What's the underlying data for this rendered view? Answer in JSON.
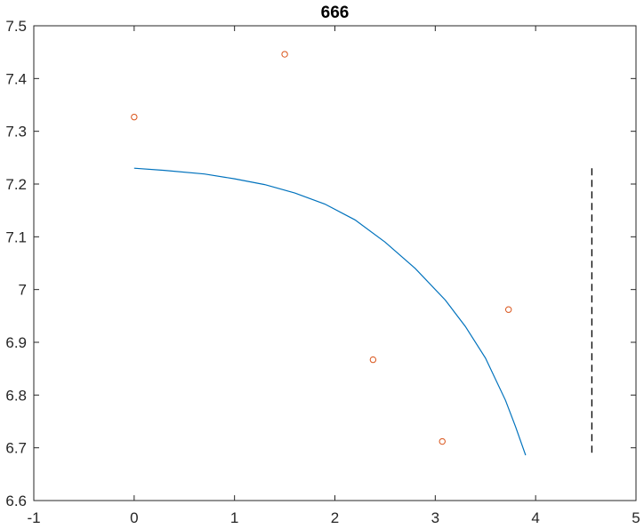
{
  "chart_data": {
    "type": "scatter",
    "title": "666",
    "xlabel": "",
    "ylabel": "",
    "xlim": [
      -1,
      5
    ],
    "ylim": [
      6.6,
      7.5
    ],
    "xticks": [
      -1,
      0,
      1,
      2,
      3,
      4,
      5
    ],
    "xtick_labels": [
      "-1",
      "0",
      "1",
      "2",
      "3",
      "4",
      "5"
    ],
    "yticks": [
      6.6,
      6.7,
      6.8,
      6.9,
      7.0,
      7.1,
      7.2,
      7.3,
      7.4,
      7.5
    ],
    "ytick_labels": [
      "6.6",
      "6.7",
      "6.8",
      "6.9",
      "7",
      "7.1",
      "7.2",
      "7.3",
      "7.4",
      "7.5"
    ],
    "grid": false,
    "legend": "none",
    "series": [
      {
        "kind": "markers",
        "marker": "circle-open",
        "color": "#D95319",
        "points": [
          {
            "x": 0.0,
            "y": 7.327
          },
          {
            "x": 1.5,
            "y": 7.446
          },
          {
            "x": 2.38,
            "y": 6.867
          },
          {
            "x": 3.07,
            "y": 6.712
          },
          {
            "x": 3.73,
            "y": 6.962
          }
        ]
      },
      {
        "kind": "line",
        "style": "solid",
        "color": "#0072BD",
        "points": [
          {
            "x": 0.0,
            "y": 7.23
          },
          {
            "x": 0.3,
            "y": 7.226
          },
          {
            "x": 0.7,
            "y": 7.219
          },
          {
            "x": 1.0,
            "y": 7.21
          },
          {
            "x": 1.3,
            "y": 7.199
          },
          {
            "x": 1.6,
            "y": 7.183
          },
          {
            "x": 1.9,
            "y": 7.162
          },
          {
            "x": 2.2,
            "y": 7.132
          },
          {
            "x": 2.5,
            "y": 7.09
          },
          {
            "x": 2.8,
            "y": 7.04
          },
          {
            "x": 3.1,
            "y": 6.98
          },
          {
            "x": 3.3,
            "y": 6.93
          },
          {
            "x": 3.5,
            "y": 6.87
          },
          {
            "x": 3.7,
            "y": 6.79
          },
          {
            "x": 3.8,
            "y": 6.74
          },
          {
            "x": 3.9,
            "y": 6.686
          }
        ]
      },
      {
        "kind": "line",
        "style": "dashed",
        "color": "#000000",
        "points": [
          {
            "x": 4.56,
            "y": 7.23
          },
          {
            "x": 4.56,
            "y": 6.686
          }
        ]
      }
    ]
  }
}
